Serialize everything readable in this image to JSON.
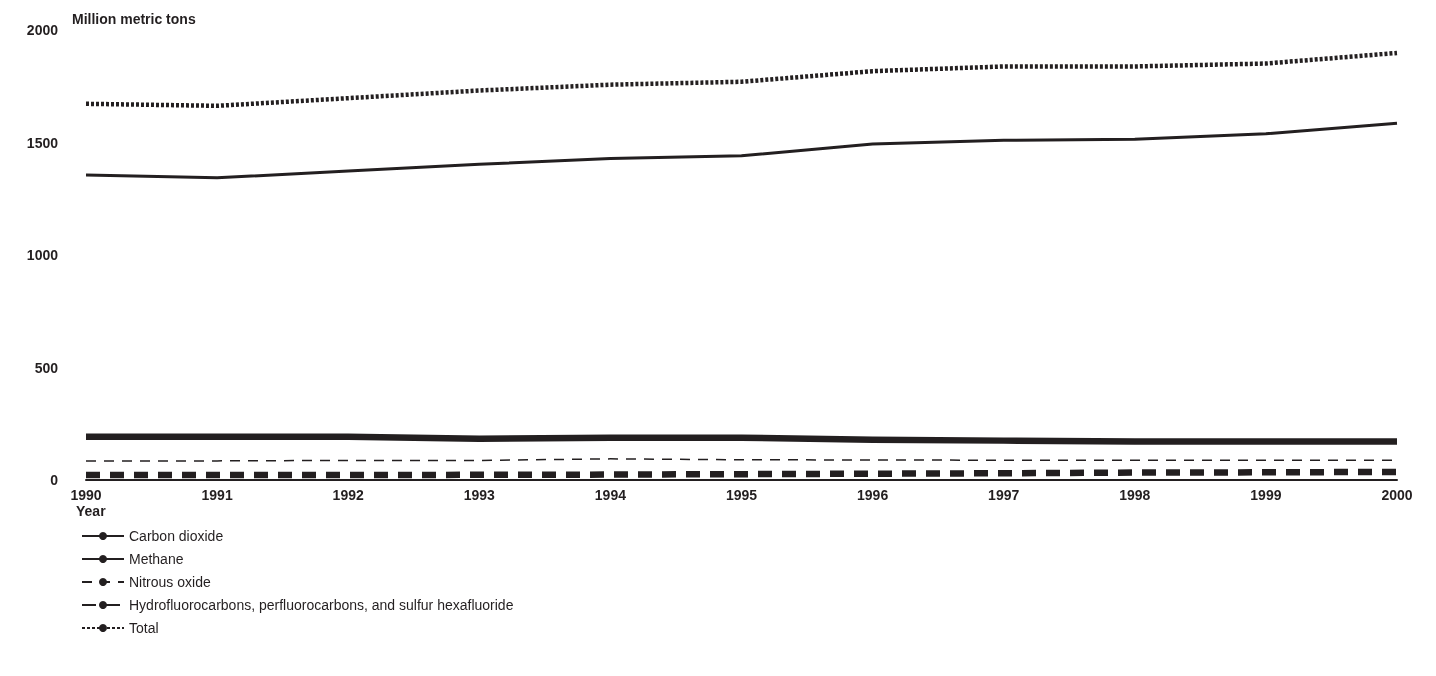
{
  "chart_data": {
    "type": "line",
    "ylabel": "Million metric tons",
    "xlabel": "Year",
    "x": [
      1990,
      1991,
      1992,
      1993,
      1994,
      1995,
      1996,
      1997,
      1998,
      1999,
      2000
    ],
    "xlim": [
      1990,
      2000
    ],
    "xticks": [
      1990,
      1991,
      1992,
      1993,
      1994,
      1995,
      1996,
      1997,
      1998,
      1999,
      2000
    ],
    "ylim": [
      0,
      2000
    ],
    "yticks": [
      0,
      500,
      1000,
      1500,
      2000
    ],
    "grid": false,
    "legend": "bottom left",
    "marker": "none",
    "series": [
      {
        "name": "Carbon dioxide",
        "color": "#231f20",
        "line_style": "solid",
        "values": [
          1356,
          1343,
          1373,
          1403,
          1429,
          1441,
          1493,
          1510,
          1514,
          1539,
          1586
        ]
      },
      {
        "name": "Methane",
        "color": "#231f20",
        "line_style": "solid",
        "values": [
          192,
          192,
          192,
          183,
          188,
          188,
          179,
          175,
          171,
          171,
          171
        ]
      },
      {
        "name": "Nitrous oxide",
        "color": "#231f20",
        "line_style": "dashed",
        "values": [
          85,
          85,
          87,
          87,
          94,
          90,
          89,
          88,
          88,
          88,
          88
        ]
      },
      {
        "name": "Hydrofluorocarbons, perfluorocarbons, and sulfur hexafluoride",
        "color": "#231f20",
        "line_style": "dashed",
        "values": [
          22,
          22,
          22,
          23,
          24,
          26,
          28,
          30,
          33,
          34,
          36
        ]
      },
      {
        "name": "Total",
        "color": "#231f20",
        "line_style": "dotted",
        "values": [
          1672,
          1663,
          1697,
          1731,
          1757,
          1770,
          1817,
          1838,
          1838,
          1851,
          1898
        ]
      }
    ]
  }
}
